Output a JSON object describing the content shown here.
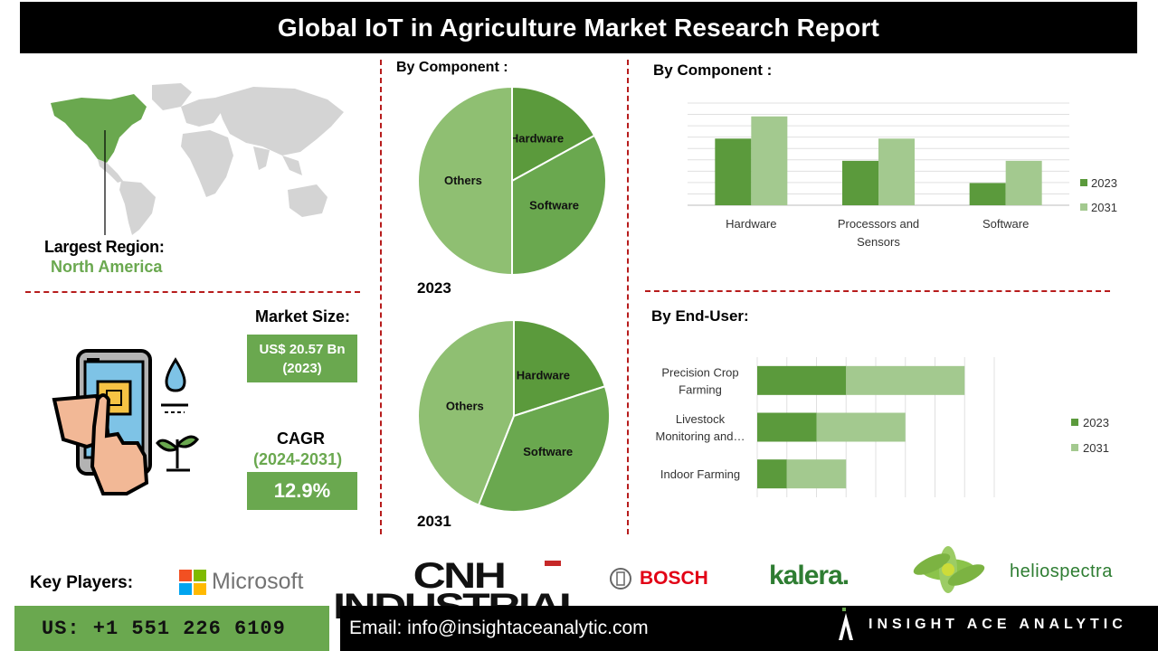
{
  "header": {
    "title": "Global  IoT in Agriculture Market Research Report"
  },
  "region": {
    "label": "Largest Region:",
    "value": "North America"
  },
  "market": {
    "size_label": "Market Size:",
    "size_value_line1": "US$ 20.57 Bn",
    "size_value_line2": "(2023)",
    "cagr_label": "CAGR",
    "cagr_period": "(2024-2031)",
    "cagr_value": "12.9%"
  },
  "pies": {
    "title": "By Component :",
    "year_2023": "2023",
    "year_2031": "2031"
  },
  "component_bar": {
    "title": "By Component  :"
  },
  "enduser_bar": {
    "title": "By End-User:"
  },
  "key_players": {
    "label": "Key Players:",
    "logos": [
      "Microsoft",
      "CNH INDUSTRIAL",
      "BOSCH",
      "kalera.",
      "heliospectra"
    ]
  },
  "footer": {
    "phone": "US: +1 551 226 6109",
    "email": "Email: info@insightaceanalytic.com",
    "brand": "INSIGHT ACE ANALYTIC"
  },
  "colors": {
    "dark_green": "#5b9a3c",
    "mid_green": "#6aa84f",
    "light_green": "#a3c98f",
    "pale_green": "#8fbf72",
    "red_dash": "#b71c1c"
  },
  "chart_data": [
    {
      "type": "pie",
      "title": "By Component :",
      "year": "2023",
      "slices": [
        {
          "label": "Hardware",
          "value": 17
        },
        {
          "label": "Software",
          "value": 33
        },
        {
          "label": "Others",
          "value": 50
        }
      ]
    },
    {
      "type": "pie",
      "year": "2031",
      "slices": [
        {
          "label": "Hardware",
          "value": 20
        },
        {
          "label": "Software",
          "value": 36
        },
        {
          "label": "Others",
          "value": 44
        }
      ]
    },
    {
      "type": "bar",
      "title": "By Component  :",
      "categories": [
        "Hardware",
        "Processors and Sensors",
        "Software"
      ],
      "category_lines": [
        [
          "Hardware"
        ],
        [
          "Processors and",
          "Sensors"
        ],
        [
          "Software"
        ]
      ],
      "series": [
        {
          "name": "2023",
          "values": [
            3,
            2,
            1
          ]
        },
        {
          "name": "2031",
          "values": [
            4,
            3,
            2
          ]
        }
      ],
      "ylim": [
        0,
        4.6
      ],
      "grid": true,
      "legend": "right"
    },
    {
      "type": "bar",
      "orientation": "horizontal",
      "stacked": true,
      "title": "By End-User:",
      "categories": [
        "Precision Crop Farming",
        "Livestock Monitoring and…",
        "Indoor Farming"
      ],
      "category_lines": [
        [
          "Precision Crop",
          "Farming"
        ],
        [
          "Livestock",
          "Monitoring and…"
        ],
        [
          "Indoor Farming"
        ]
      ],
      "series": [
        {
          "name": "2023",
          "values": [
            3,
            2,
            1
          ]
        },
        {
          "name": "2031",
          "values": [
            4,
            3,
            2
          ]
        }
      ],
      "xlim": [
        0,
        8
      ],
      "grid": true,
      "legend": "right"
    }
  ]
}
